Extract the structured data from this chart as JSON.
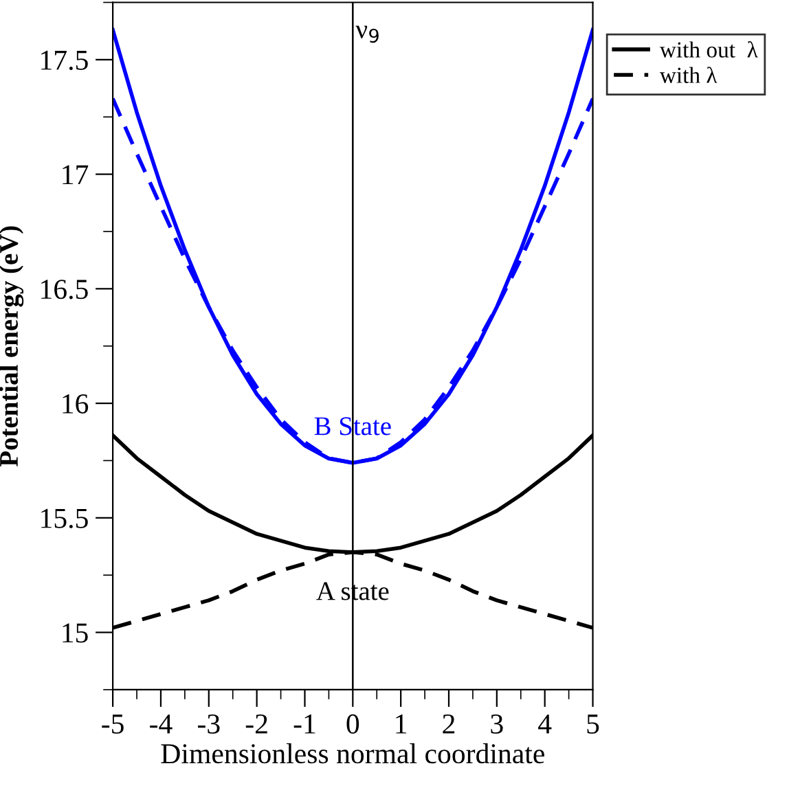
{
  "chart_data": {
    "type": "line",
    "xlabel": "Dimensionless normal coordinate",
    "ylabel": "Potential energy (eV)",
    "xlim": [
      -5,
      5
    ],
    "ylim": [
      14.75,
      17.75
    ],
    "xticks": [
      -5,
      {
        "value": -4.5,
        "label": null
      },
      -4,
      {
        "value": -3.5,
        "label": null
      },
      -3,
      {
        "value": -2.5,
        "label": null
      },
      -2,
      {
        "value": -1.5,
        "label": null
      },
      -1,
      {
        "value": -0.5,
        "label": null
      },
      0,
      {
        "value": 0.5,
        "label": null
      },
      1,
      {
        "value": 1.5,
        "label": null
      },
      2,
      {
        "value": 2.5,
        "label": null
      },
      3,
      {
        "value": 3.5,
        "label": null
      },
      4,
      {
        "value": 4.5,
        "label": null
      },
      5
    ],
    "yticks": [
      {
        "value": 14.75,
        "label": null
      },
      15,
      {
        "value": 15.25,
        "label": null
      },
      15.5,
      {
        "value": 15.75,
        "label": null
      },
      16,
      {
        "value": 16.25,
        "label": null
      },
      16.5,
      {
        "value": 16.75,
        "label": null
      },
      17,
      {
        "value": 17.25,
        "label": null
      },
      17.5,
      {
        "value": 17.75,
        "label": null
      }
    ],
    "x": [
      -5,
      -4.5,
      -4,
      -3.5,
      -3,
      -2.5,
      -2,
      -1.5,
      -1,
      -0.5,
      0,
      0.5,
      1,
      1.5,
      2,
      2.5,
      3,
      3.5,
      4,
      4.5,
      5
    ],
    "series": [
      {
        "color": "#0000ff",
        "line_style": "solid",
        "values": [
          17.63,
          17.27,
          16.95,
          16.67,
          16.42,
          16.21,
          16.04,
          15.91,
          15.816,
          15.759,
          15.74,
          15.759,
          15.816,
          15.91,
          16.04,
          16.21,
          16.42,
          16.67,
          16.95,
          17.27,
          17.63
        ]
      },
      {
        "color": "#0000ff",
        "line_style": "dashed",
        "values": [
          17.33,
          17.09,
          16.86,
          16.63,
          16.42,
          16.23,
          16.07,
          15.93,
          15.83,
          15.76,
          15.74,
          15.76,
          15.83,
          15.93,
          16.07,
          16.23,
          16.42,
          16.63,
          16.86,
          17.09,
          17.33
        ]
      },
      {
        "name": "with out  λ",
        "color": "#000000",
        "line_style": "solid",
        "values": [
          15.86,
          15.76,
          15.68,
          15.6,
          15.53,
          15.48,
          15.43,
          15.4,
          15.37,
          15.355,
          15.35,
          15.355,
          15.37,
          15.4,
          15.43,
          15.48,
          15.53,
          15.6,
          15.68,
          15.76,
          15.86
        ]
      },
      {
        "name": "with λ",
        "color": "#000000",
        "line_style": "dashed",
        "values": [
          15.02,
          15.05,
          15.08,
          15.11,
          15.14,
          15.18,
          15.23,
          15.27,
          15.3,
          15.34,
          15.35,
          15.34,
          15.3,
          15.27,
          15.23,
          15.18,
          15.14,
          15.11,
          15.08,
          15.05,
          15.02
        ]
      }
    ],
    "ref_lines": [
      {
        "axis": "x",
        "value": 0,
        "label": "ν$_{9}$",
        "color": "#000000",
        "line_style": "solid"
      }
    ],
    "annotations": [
      {
        "text": "B State",
        "x": 0,
        "y": 15.89
      },
      {
        "text": "A state",
        "x": 0,
        "y": 15.17
      }
    ],
    "legend": "top right",
    "grid": false,
    "marker": "none"
  }
}
